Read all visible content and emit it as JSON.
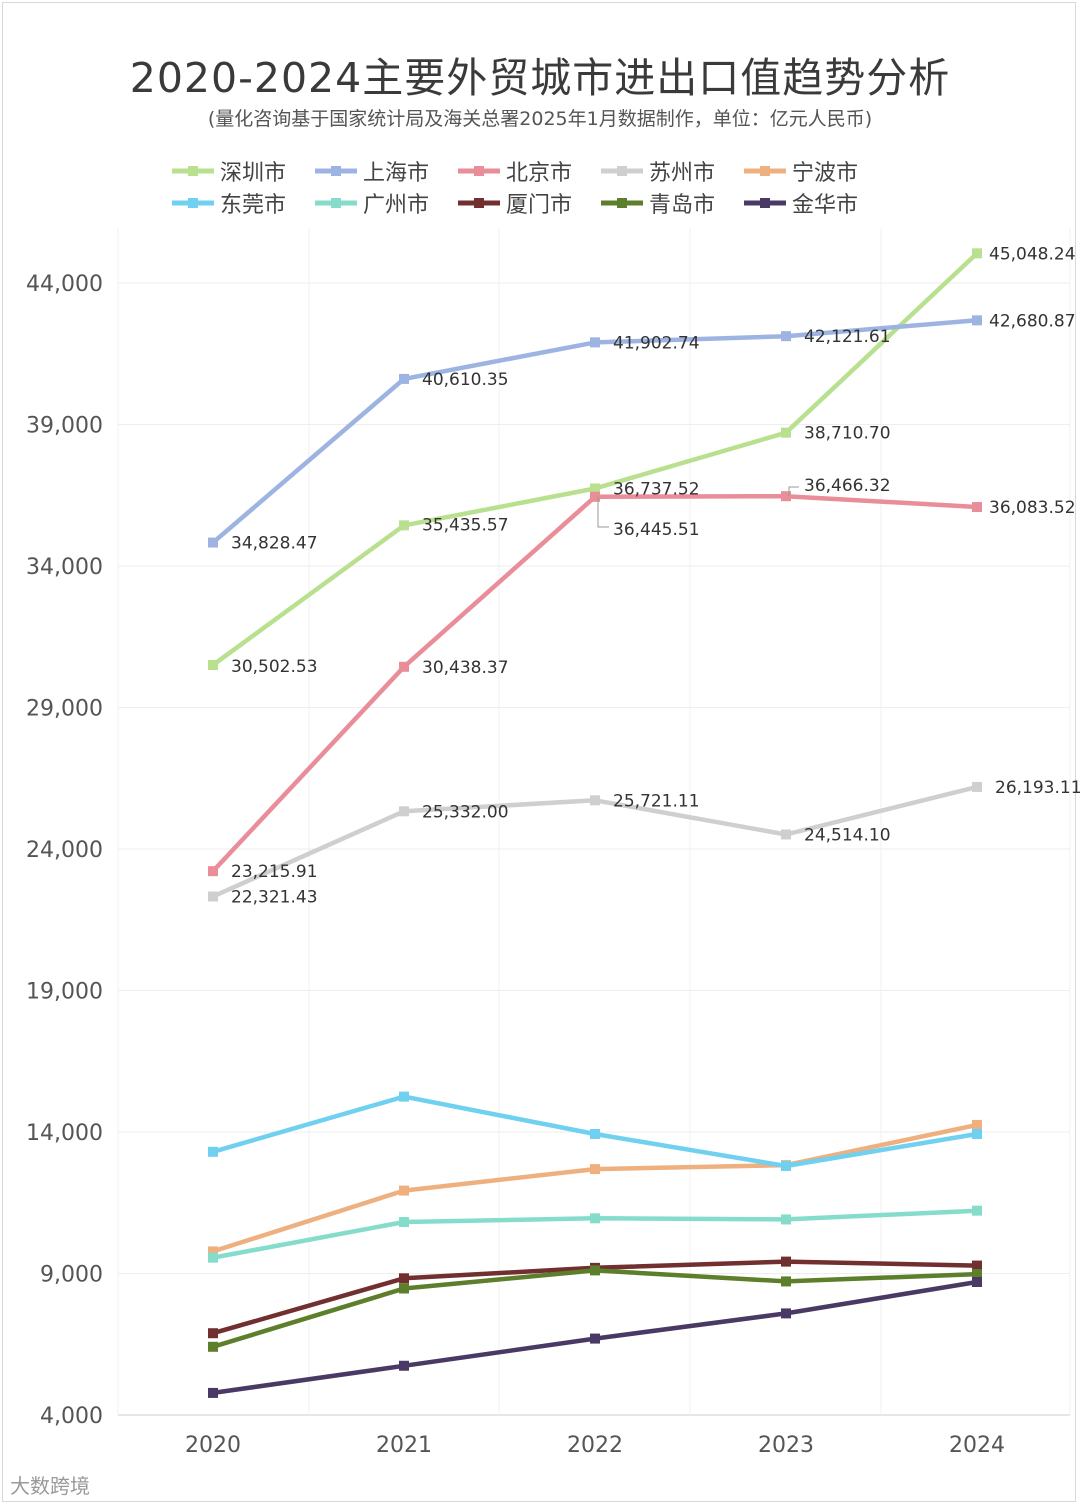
{
  "chart_data": {
    "type": "line",
    "title": "2020-2024主要外贸城市进出口值趋势分析",
    "subtitle": "(量化咨询基于国家统计局及海关总署2025年1月数据制作，单位：亿元人民币)",
    "categories": [
      "2020",
      "2021",
      "2022",
      "2023",
      "2024"
    ],
    "ylim": [
      4000,
      46000
    ],
    "yticks": [
      "4,000",
      "9,000",
      "14,000",
      "19,000",
      "24,000",
      "29,000",
      "34,000",
      "39,000",
      "44,000"
    ],
    "legend_position": "top",
    "series": [
      {
        "name": "深圳市",
        "color": "#b8e08f",
        "values": [
          30502.53,
          35435.57,
          36737.52,
          38710.7,
          45048.24
        ],
        "labels": [
          "30,502.53",
          "35,435.57",
          "36,737.52",
          "38,710.70",
          "45,048.24"
        ]
      },
      {
        "name": "上海市",
        "color": "#9db4e2",
        "values": [
          34828.47,
          40610.35,
          41902.74,
          42121.61,
          42680.87
        ],
        "labels": [
          "34,828.47",
          "40,610.35",
          "41,902.74",
          "42,121.61",
          "42,680.87"
        ]
      },
      {
        "name": "北京市",
        "color": "#e98d98",
        "values": [
          23215.91,
          30438.37,
          36445.51,
          36466.32,
          36083.52
        ],
        "labels": [
          "23,215.91",
          "30,438.37",
          "36,445.51",
          "36,466.32",
          "36,083.52"
        ]
      },
      {
        "name": "苏州市",
        "color": "#cfcfcf",
        "values": [
          22321.43,
          25332.0,
          25721.11,
          24514.1,
          26193.11
        ],
        "labels": [
          "22,321.43",
          "25,332.00",
          "25,721.11",
          "24,514.10",
          "26,193.11"
        ]
      },
      {
        "name": "宁波市",
        "color": "#efb07f",
        "values": [
          9780,
          11930,
          12690,
          12830,
          14250
        ],
        "labels": []
      },
      {
        "name": "东莞市",
        "color": "#6fd0f0",
        "values": [
          13300,
          15250,
          13930,
          12800,
          13930
        ],
        "labels": []
      },
      {
        "name": "广州市",
        "color": "#86dccb",
        "values": [
          9560,
          10820,
          10950,
          10910,
          11220
        ],
        "labels": []
      },
      {
        "name": "厦门市",
        "color": "#722f2f",
        "values": [
          6890,
          8830,
          9200,
          9420,
          9280
        ],
        "labels": []
      },
      {
        "name": "青岛市",
        "color": "#5d7f2b",
        "values": [
          6410,
          8470,
          9110,
          8720,
          8980
        ],
        "labels": []
      },
      {
        "name": "金华市",
        "color": "#4a3964",
        "values": [
          4780,
          5740,
          6700,
          7590,
          8700
        ],
        "labels": []
      }
    ]
  },
  "footer": "大数跨境"
}
